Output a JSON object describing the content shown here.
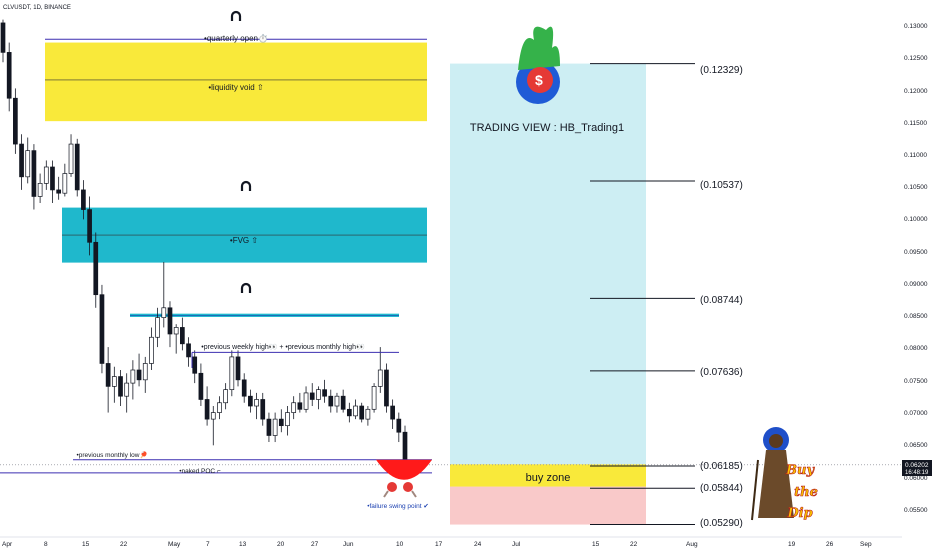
{
  "header": {
    "symbol": "CLVUSDT, 1D, BINANCE"
  },
  "price_axis_labels": [
    "0.13000",
    "0.12500",
    "0.12000",
    "0.11500",
    "0.11000",
    "0.10500",
    "0.10000",
    "0.09500",
    "0.09000",
    "0.08500",
    "0.08000",
    "0.07500",
    "0.07000",
    "0.06500",
    "0.06000",
    "0.05500"
  ],
  "time_axis_labels": [
    "Apr",
    "8",
    "15",
    "22",
    "May",
    "7",
    "13",
    "20",
    "27",
    "Jun",
    "10",
    "17",
    "24",
    "Jul",
    "15",
    "22",
    "Aug",
    "19",
    "26",
    "Sep"
  ],
  "current_price": {
    "price": "0.06202",
    "countdown": "16:48:19"
  },
  "annotations": {
    "quarterly_open": "•quarterly open⏱️",
    "liquidity_void": "•liquidity void ⇧",
    "fvg": "•FVG ⇧",
    "previous_weekly_high": "•previous weekly high👀 + •previous monthly high👀",
    "previous_monthly_low": "•previous monthly low🏓",
    "naked_poc": "•naked POC ⌐",
    "failure_swing_point": "•failure swing point ✔"
  },
  "trading_view_label": "TRADING VIEW : HB_Trading1",
  "buy_zone_label": "buy zone",
  "target_levels": [
    "(0.12329)",
    "(0.10537)",
    "(0.08744)",
    "(0.07636)",
    "(0.06185)",
    "(0.05844)",
    "(0.05290)"
  ],
  "magnet_icon": "magnet-icon",
  "colors": {
    "yellow_zone": "#f9e93a",
    "fvg_zone": "#1fb8cc",
    "target_zone": "#cdeef3",
    "stop_zone": "#f9c9c9",
    "level_line": "#3b2fb0",
    "red_bowl": "#ff1a1a"
  },
  "chart_data": {
    "type": "candlestick",
    "title": "",
    "series": [
      {
        "name": "CLVUSDT",
        "ohlc": [
          [
            0.1295,
            0.13,
            0.1235,
            0.125
          ],
          [
            0.125,
            0.1265,
            0.116,
            0.118
          ],
          [
            0.118,
            0.1195,
            0.1095,
            0.111
          ],
          [
            0.111,
            0.1125,
            0.104,
            0.106
          ],
          [
            0.106,
            0.112,
            0.105,
            0.11
          ],
          [
            0.11,
            0.111,
            0.101,
            0.103
          ],
          [
            0.103,
            0.1065,
            0.102,
            0.105
          ],
          [
            0.105,
            0.1085,
            0.104,
            0.1075
          ],
          [
            0.1075,
            0.1085,
            0.102,
            0.104
          ],
          [
            0.104,
            0.106,
            0.1025,
            0.1035
          ],
          [
            0.1035,
            0.108,
            0.103,
            0.1065
          ],
          [
            0.1065,
            0.1125,
            0.106,
            0.111
          ],
          [
            0.111,
            0.1118,
            0.103,
            0.104
          ],
          [
            0.104,
            0.1055,
            0.0995,
            0.101
          ],
          [
            0.101,
            0.103,
            0.094,
            0.096
          ],
          [
            0.096,
            0.0975,
            0.086,
            0.088
          ],
          [
            0.088,
            0.0895,
            0.076,
            0.0775
          ],
          [
            0.0775,
            0.08,
            0.07,
            0.074
          ],
          [
            0.074,
            0.077,
            0.0715,
            0.0755
          ],
          [
            0.0755,
            0.0765,
            0.071,
            0.0725
          ],
          [
            0.0725,
            0.076,
            0.07,
            0.0745
          ],
          [
            0.0745,
            0.078,
            0.072,
            0.0765
          ],
          [
            0.0765,
            0.079,
            0.074,
            0.075
          ],
          [
            0.075,
            0.0785,
            0.073,
            0.0775
          ],
          [
            0.0775,
            0.083,
            0.0765,
            0.0815
          ],
          [
            0.0815,
            0.086,
            0.08,
            0.0845
          ],
          [
            0.0845,
            0.093,
            0.083,
            0.086
          ],
          [
            0.086,
            0.087,
            0.08,
            0.082
          ],
          [
            0.082,
            0.0835,
            0.079,
            0.083
          ],
          [
            0.083,
            0.0845,
            0.0795,
            0.0805
          ],
          [
            0.0805,
            0.0815,
            0.077,
            0.0785
          ],
          [
            0.0785,
            0.0795,
            0.0745,
            0.076
          ],
          [
            0.076,
            0.0775,
            0.071,
            0.072
          ],
          [
            0.072,
            0.074,
            0.068,
            0.069
          ],
          [
            0.069,
            0.071,
            0.065,
            0.07
          ],
          [
            0.07,
            0.0725,
            0.069,
            0.0715
          ],
          [
            0.0715,
            0.0745,
            0.0705,
            0.0735
          ],
          [
            0.0735,
            0.0795,
            0.0725,
            0.0785
          ],
          [
            0.0785,
            0.0795,
            0.074,
            0.075
          ],
          [
            0.075,
            0.076,
            0.0715,
            0.0725
          ],
          [
            0.0725,
            0.0735,
            0.07,
            0.071
          ],
          [
            0.071,
            0.073,
            0.069,
            0.072
          ],
          [
            0.072,
            0.073,
            0.068,
            0.069
          ],
          [
            0.069,
            0.07,
            0.0655,
            0.0665
          ],
          [
            0.0665,
            0.07,
            0.0655,
            0.069
          ],
          [
            0.069,
            0.0705,
            0.067,
            0.068
          ],
          [
            0.068,
            0.071,
            0.0665,
            0.07
          ],
          [
            0.07,
            0.0725,
            0.069,
            0.0715
          ],
          [
            0.0715,
            0.073,
            0.07,
            0.0705
          ],
          [
            0.0705,
            0.074,
            0.07,
            0.073
          ],
          [
            0.073,
            0.0745,
            0.071,
            0.072
          ],
          [
            0.072,
            0.074,
            0.0705,
            0.0735
          ],
          [
            0.0735,
            0.075,
            0.0715,
            0.0725
          ],
          [
            0.0725,
            0.0735,
            0.07,
            0.071
          ],
          [
            0.071,
            0.073,
            0.07,
            0.0725
          ],
          [
            0.0725,
            0.0735,
            0.07,
            0.0705
          ],
          [
            0.0705,
            0.0715,
            0.0685,
            0.0695
          ],
          [
            0.0695,
            0.072,
            0.069,
            0.071
          ],
          [
            0.071,
            0.0715,
            0.0685,
            0.069
          ],
          [
            0.069,
            0.071,
            0.068,
            0.0705
          ],
          [
            0.0705,
            0.0745,
            0.07,
            0.074
          ],
          [
            0.074,
            0.08,
            0.073,
            0.0765
          ],
          [
            0.0765,
            0.0775,
            0.07,
            0.071
          ],
          [
            0.071,
            0.072,
            0.0675,
            0.069
          ],
          [
            0.069,
            0.07,
            0.0655,
            0.067
          ],
          [
            0.067,
            0.068,
            0.061,
            0.062
          ]
        ]
      }
    ],
    "price_range": [
      0.051,
      0.133
    ],
    "levels": {
      "quarterly_open": 0.127,
      "liquidity_void": [
        0.1145,
        0.1265
      ],
      "fvg": [
        0.0929,
        0.1013
      ],
      "small_zone": [
        0.0846,
        0.0851
      ],
      "previous_weekly_high": 0.0792,
      "previous_monthly_low": 0.0628,
      "naked_poc": 0.0608
    },
    "targets": [
      0.12329,
      0.10537,
      0.08744,
      0.07636,
      0.06185,
      0.05844,
      0.0529
    ],
    "buy_zone": [
      0.0587,
      0.0621
    ],
    "current_price": 0.06202,
    "grid": false,
    "legend": "none"
  }
}
